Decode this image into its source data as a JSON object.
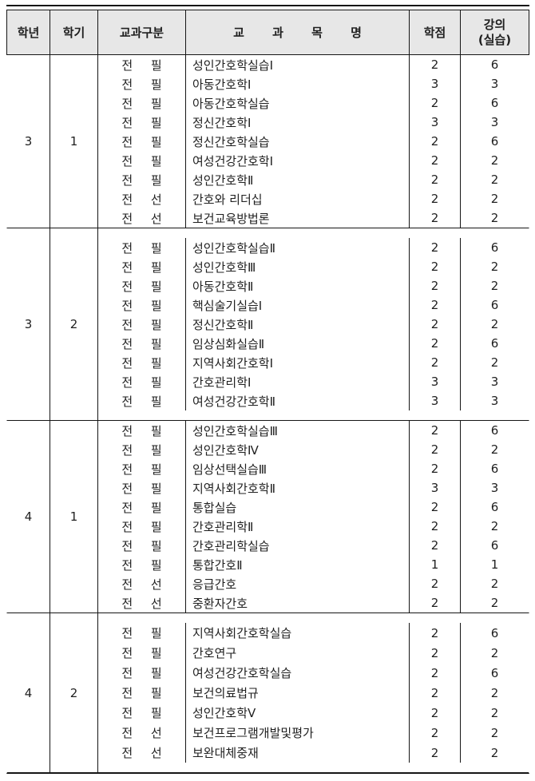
{
  "table": {
    "colors": {
      "header_bg": "#e7e7e7",
      "border": "#151515",
      "text": "#1f1f1f"
    },
    "header": {
      "year": "학년",
      "semester": "학기",
      "type": "교과구분",
      "course": "교 과 목 명",
      "credits": "학점",
      "hours_top": "강의",
      "hours_bottom": "(실습)"
    },
    "blocks": [
      {
        "year": "3",
        "semester": "1",
        "padded": false,
        "rows": [
          {
            "type": "전 필",
            "course": "성인간호학실습Ⅰ",
            "credits": "2",
            "hours": "6"
          },
          {
            "type": "전 필",
            "course": "아동간호학Ⅰ",
            "credits": "3",
            "hours": "3"
          },
          {
            "type": "전 필",
            "course": "아동간호학실습",
            "credits": "2",
            "hours": "6"
          },
          {
            "type": "전 필",
            "course": "정신간호학Ⅰ",
            "credits": "3",
            "hours": "3"
          },
          {
            "type": "전 필",
            "course": "정신간호학실습",
            "credits": "2",
            "hours": "6"
          },
          {
            "type": "전 필",
            "course": "여성건강간호학Ⅰ",
            "credits": "2",
            "hours": "2"
          },
          {
            "type": "전 필",
            "course": "성인간호학Ⅱ",
            "credits": "2",
            "hours": "2"
          },
          {
            "type": "전 선",
            "course": "간호와 리더십",
            "credits": "2",
            "hours": "2"
          },
          {
            "type": "전 선",
            "course": "보건교육방법론",
            "credits": "2",
            "hours": "2"
          }
        ]
      },
      {
        "year": "3",
        "semester": "2",
        "padded": true,
        "rows": [
          {
            "type": "전 필",
            "course": "성인간호학실습Ⅱ",
            "credits": "2",
            "hours": "6"
          },
          {
            "type": "전 필",
            "course": "성인간호학Ⅲ",
            "credits": "2",
            "hours": "2"
          },
          {
            "type": "전 필",
            "course": "아동간호학Ⅱ",
            "credits": "2",
            "hours": "2"
          },
          {
            "type": "전 필",
            "course": "핵심술기실습Ⅰ",
            "credits": "2",
            "hours": "6"
          },
          {
            "type": "전 필",
            "course": "정신간호학Ⅱ",
            "credits": "2",
            "hours": "2"
          },
          {
            "type": "전 필",
            "course": "임상심화실습Ⅱ",
            "credits": "2",
            "hours": "6"
          },
          {
            "type": "전 필",
            "course": "지역사회간호학Ⅰ",
            "credits": "2",
            "hours": "2"
          },
          {
            "type": "전 필",
            "course": "간호관리학Ⅰ",
            "credits": "3",
            "hours": "3"
          },
          {
            "type": "전 필",
            "course": "여성건강간호학Ⅱ",
            "credits": "3",
            "hours": "3"
          }
        ]
      },
      {
        "year": "4",
        "semester": "1",
        "padded": false,
        "rows": [
          {
            "type": "전 필",
            "course": "성인간호학실습Ⅲ",
            "credits": "2",
            "hours": "6"
          },
          {
            "type": "전 필",
            "course": "성인간호학Ⅳ",
            "credits": "2",
            "hours": "2"
          },
          {
            "type": "전 필",
            "course": "임상선택실습Ⅲ",
            "credits": "2",
            "hours": "6"
          },
          {
            "type": "전 필",
            "course": "지역사회간호학Ⅱ",
            "credits": "3",
            "hours": "3"
          },
          {
            "type": "전 필",
            "course": "통합실습",
            "credits": "2",
            "hours": "6"
          },
          {
            "type": "전 필",
            "course": "간호관리학Ⅱ",
            "credits": "2",
            "hours": "2"
          },
          {
            "type": "전 필",
            "course": "간호관리학실습",
            "credits": "2",
            "hours": "6"
          },
          {
            "type": "전 필",
            "course": "통합간호Ⅱ",
            "credits": "1",
            "hours": "1"
          },
          {
            "type": "전 선",
            "course": "응급간호",
            "credits": "2",
            "hours": "2"
          },
          {
            "type": "전 선",
            "course": "중환자간호",
            "credits": "2",
            "hours": "2"
          }
        ]
      },
      {
        "year": "4",
        "semester": "2",
        "padded": true,
        "rows": [
          {
            "type": "전 필",
            "course": "지역사회간호학실습",
            "credits": "2",
            "hours": "6"
          },
          {
            "type": "전 필",
            "course": "간호연구",
            "credits": "2",
            "hours": "2"
          },
          {
            "type": "전 필",
            "course": "여성건강간호학실습",
            "credits": "2",
            "hours": "6"
          },
          {
            "type": "전 필",
            "course": "보건의료법규",
            "credits": "2",
            "hours": "2"
          },
          {
            "type": "전 필",
            "course": "성인간호학Ⅴ",
            "credits": "2",
            "hours": "2"
          },
          {
            "type": "전 선",
            "course": "보건프로그램개발및평가",
            "credits": "2",
            "hours": "2"
          },
          {
            "type": "전 선",
            "course": "보완대체중재",
            "credits": "2",
            "hours": "2"
          }
        ]
      }
    ]
  }
}
